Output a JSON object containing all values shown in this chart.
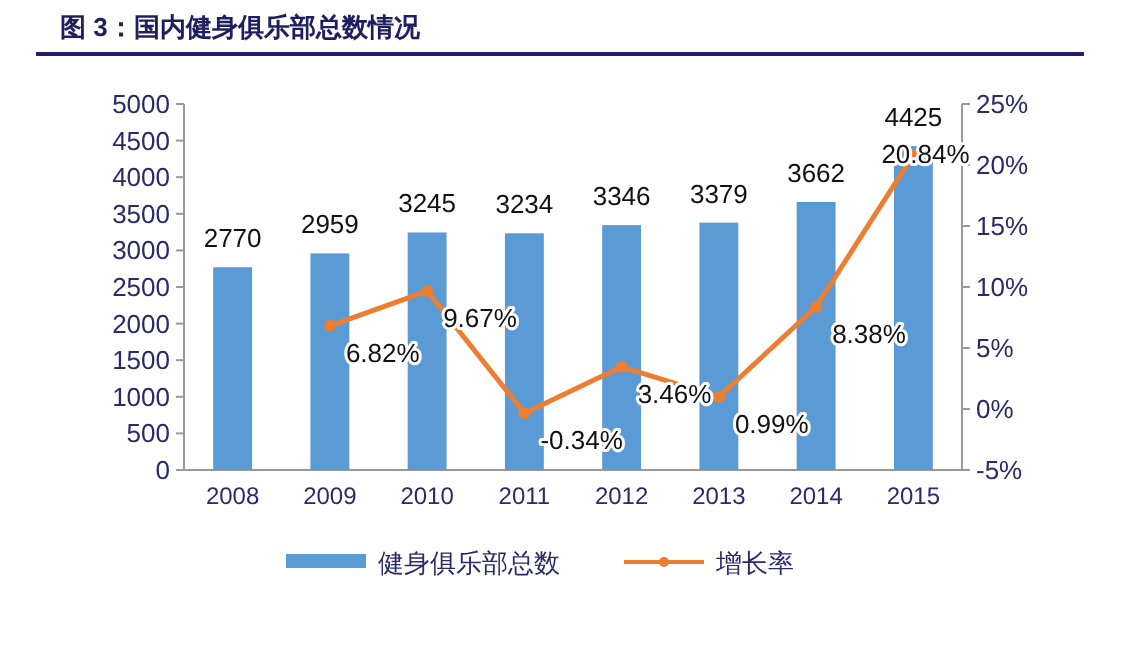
{
  "chart_data": {
    "type": "bar",
    "title": "图 3：国内健身俱乐部总数情况",
    "categories": [
      "2008",
      "2009",
      "2010",
      "2011",
      "2012",
      "2013",
      "2014",
      "2015"
    ],
    "series": [
      {
        "name": "健身俱乐部总数",
        "color": "#5b9bd5",
        "values": [
          2770,
          2959,
          3245,
          3234,
          3346,
          3379,
          3662,
          4425
        ],
        "value_labels": [
          "2770",
          "2959",
          "3245",
          "3234",
          "3346",
          "3379",
          "3662",
          "4425"
        ]
      },
      {
        "name": "增长率",
        "type": "line",
        "axis": "y2",
        "color": "#ed7d31",
        "marker": "circle",
        "values": [
          null,
          6.82,
          9.67,
          -0.34,
          3.46,
          0.99,
          8.38,
          20.84
        ],
        "value_labels": [
          null,
          "6.82%",
          "9.67%",
          "-0.34%",
          "3.46%",
          "0.99%",
          "8.38%",
          "20.84%"
        ]
      }
    ],
    "ylim": [
      0,
      5000
    ],
    "yticks": [
      0,
      500,
      1000,
      1500,
      2000,
      2500,
      3000,
      3500,
      4000,
      4500,
      5000
    ],
    "y2lim": [
      -5,
      25
    ],
    "y2ticks": [
      {
        "value": -5,
        "label": "-5%"
      },
      {
        "value": 0,
        "label": "0%"
      },
      {
        "value": 5,
        "label": "5%"
      },
      {
        "value": 10,
        "label": "10%"
      },
      {
        "value": 15,
        "label": "15%"
      },
      {
        "value": 20,
        "label": "20%"
      },
      {
        "value": 25,
        "label": "25%"
      }
    ],
    "legend": "bottom",
    "grid": false
  }
}
